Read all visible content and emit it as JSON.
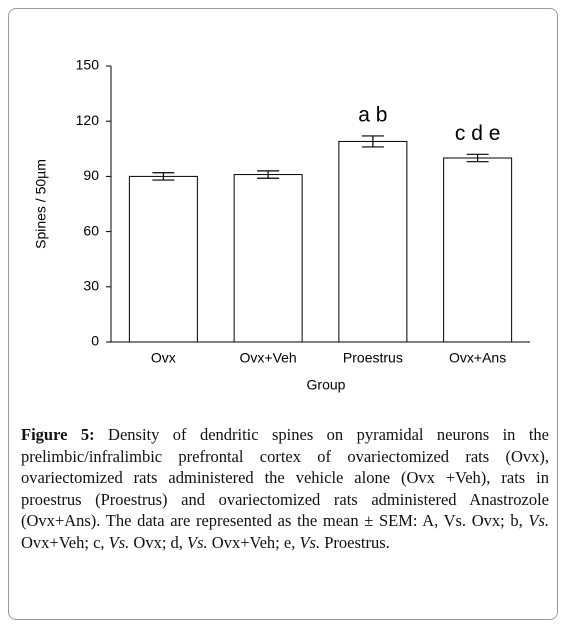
{
  "chart_data": {
    "type": "bar",
    "x_label": "Group",
    "y_label": "Spines / 50µm",
    "categories": [
      "Ovx",
      "Ovx+Veh",
      "Proestrus",
      "Ovx+Ans"
    ],
    "values": [
      90,
      91,
      109,
      100
    ],
    "errors": [
      2,
      2,
      3,
      2
    ],
    "color": "#ffffff",
    "edge_color": "#000000",
    "ylim": [
      0,
      150
    ],
    "yticks": [
      0,
      30,
      60,
      90,
      120,
      150
    ],
    "grid": false,
    "annotations": [
      {
        "category": "Proestrus",
        "text": "a b"
      },
      {
        "category": "Ovx+Ans",
        "text": "c d e"
      }
    ]
  },
  "caption": {
    "label": "Figure 5:",
    "segments": [
      {
        "text": " Density of dendritic spines on pyramidal neurons in the prelimbic/infralimbic prefrontal cortex of ovariectomized rats (Ovx), ovariectomized rats administered the vehicle alone (Ovx +Veh), rats in proestrus (Proestrus) and ovariectomized rats administered Anastrozole (Ovx+Ans). The data are represented as the mean ± SEM: A, Vs. Ovx; b, ",
        "italic": false
      },
      {
        "text": "Vs.",
        "italic": true
      },
      {
        "text": " Ovx+Veh; c, ",
        "italic": false
      },
      {
        "text": "Vs.",
        "italic": true
      },
      {
        "text": " Ovx; d, ",
        "italic": false
      },
      {
        "text": "Vs.",
        "italic": true
      },
      {
        "text": " Ovx+Veh; e, ",
        "italic": false
      },
      {
        "text": "Vs.",
        "italic": true
      },
      {
        "text": " Proestrus.",
        "italic": false
      }
    ]
  }
}
